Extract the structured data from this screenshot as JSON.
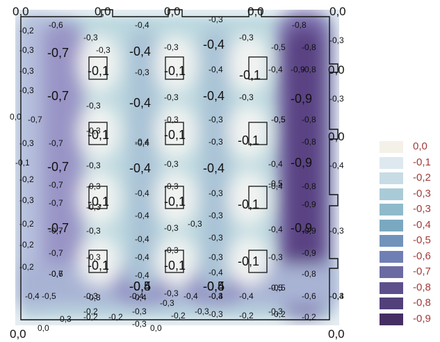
{
  "plate": {
    "columns": [
      "col-1",
      "col-2",
      "col-3",
      "col-4",
      "col-5"
    ],
    "background_color": "#bcd8df",
    "outline_color": "#111111"
  },
  "corner_labels": [
    "0,0",
    "0,0",
    "0,0",
    "0,0",
    "0,0",
    "0,0",
    "0,0",
    "0,0"
  ],
  "edge_labels": [
    "-0,2",
    "-0,3",
    "-0,3",
    "-0,3",
    "-0,3",
    "-0,1",
    "-0,2",
    "-0,3",
    "-0,2",
    "-0,2",
    "-0,2",
    "-0,3",
    "-0,3",
    "-0,4",
    "-0,3",
    "-0,3",
    "-0,4",
    "-0,3"
  ],
  "big_labels": [
    "-0,7",
    "-0,7",
    "-0,7",
    "-0,7",
    "-0,4",
    "-0,4",
    "-0,4",
    "-0,4",
    "-0,4",
    "-0,4",
    "-0,4",
    "-0,4",
    "-0,9",
    "-0,9",
    "-0,9",
    "-0,9",
    "-0,5",
    "-0,5"
  ],
  "box_labels": [
    "-0,1",
    "-0,1",
    "-0,1",
    "-0,1",
    "-0,1",
    "-0,1",
    "-0,1",
    "-0,1",
    "-0,1",
    "-0,1",
    "-0,1",
    "-0,1"
  ],
  "small_labels": [
    "-0,6",
    "-0,3",
    "-0,4",
    "-0,3",
    "-0,3",
    "-0,8",
    "-0,5",
    "-0,8",
    "-0,3",
    "-0,3",
    "-0,3",
    "-0,3",
    "-0,3",
    "-0,4",
    "-0,3",
    "-0,4",
    "-0,5",
    "-0,8",
    "-0,7",
    "-0,3",
    "-0,4",
    "-0,3",
    "-0,3",
    "-0,5",
    "-0,8",
    "-0,7",
    "-0,3",
    "-0,4",
    "-0,3",
    "-0,3",
    "-0,4",
    "-0,8",
    "-0,7",
    "-0,3",
    "-0,4",
    "-0,3",
    "-0,3",
    "-0,4",
    "-0,8",
    "-0,7",
    "-0,3",
    "-0,4",
    "-0,3",
    "-0,3",
    "-0,5",
    "-0,9",
    "-0,7",
    "-0,3",
    "-0,4",
    "-0,3",
    "-0,3",
    "-0,4",
    "-0,9",
    "-0,7",
    "-0,3",
    "-0,4",
    "-0,3",
    "-0,3",
    "-0,3",
    "-0,7",
    "-0,3",
    "-0,4",
    "-0,3",
    "-0,4",
    "-0,5",
    "-0,9",
    "-0,6",
    "-0,4",
    "-0,3",
    "-0,8",
    "-0,5",
    "-0,4",
    "-0,5",
    "-0,6",
    "-0,4",
    "-0,4",
    "-0,4",
    "-0,3",
    "-0,3",
    "-0,3",
    "-0,2",
    "-0,2",
    "-0,2",
    "-0,2",
    "-0,2",
    "-0,2",
    "-0,3",
    "-0,3",
    "-0,2",
    "-0,3",
    "-0,3",
    "-0,4"
  ],
  "bottom_labels": [
    "0,0",
    "0,0",
    "0,0",
    "0,0"
  ],
  "colorbar": {
    "labels": [
      "0,0",
      "-0,1",
      "-0,2",
      "-0,3",
      "-0,3",
      "-0,4",
      "-0,5",
      "-0,6",
      "-0,7",
      "-0,8",
      "-0,8",
      "-0,9"
    ],
    "colors": [
      "#f4f1e9",
      "#dde9ef",
      "#c7dce5",
      "#a9cbd8",
      "#8fbacb",
      "#7ba8c1",
      "#7193bb",
      "#6f7fb4",
      "#6b6aa3",
      "#5d4f8c",
      "#51407a",
      "#442e63"
    ]
  }
}
